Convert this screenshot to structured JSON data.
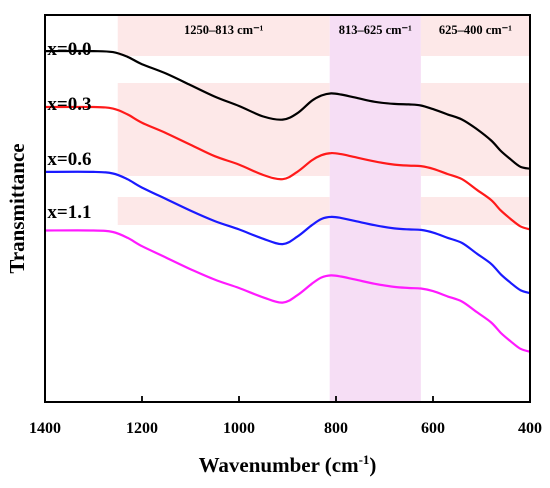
{
  "chart_data": {
    "type": "line",
    "title": "",
    "xlabel": "Wavenumber (cm",
    "xlabel_sup": "-1",
    "xlabel_end": ")",
    "ylabel": "Transmittance",
    "xlim": [
      1400,
      400
    ],
    "x_reversed": true,
    "y_ticks_shown": false,
    "grid": false,
    "xticks": [
      1400,
      1200,
      1000,
      800,
      600,
      400
    ],
    "xtick_labels": [
      "1400",
      "1200",
      "1000",
      "800",
      "600",
      "400"
    ],
    "regions": [
      {
        "label": "1250–813 cm⁻¹",
        "x0": 1250,
        "x1": 813,
        "color": "#fde8e8"
      },
      {
        "label": "813–625 cm⁻¹",
        "x0": 813,
        "x1": 625,
        "color": "#f6def5"
      },
      {
        "label": "625–400 cm⁻¹",
        "x0": 625,
        "x1": 400,
        "color": "#fde8e8"
      }
    ],
    "series": [
      {
        "name": "x=0.0",
        "color": "#000000",
        "x": [
          1400,
          1300,
          1260,
          1230,
          1200,
          1150,
          1100,
          1050,
          1000,
          950,
          910,
          880,
          850,
          830,
          810,
          790,
          760,
          720,
          680,
          650,
          625,
          600,
          570,
          540,
          510,
          480,
          460,
          440,
          420,
          400
        ],
        "y": [
          60.5,
          60.5,
          59.5,
          55,
          48,
          39,
          28,
          17,
          8,
          -2,
          -5,
          1,
          13,
          18,
          20,
          19,
          16,
          12,
          10,
          9.5,
          8.5,
          5,
          0,
          -5,
          -14,
          -25,
          -35,
          -43,
          -50,
          -52
        ]
      },
      {
        "name": "x=0.3",
        "color": "#ff1a1a",
        "x": [
          1400,
          1300,
          1260,
          1230,
          1200,
          1150,
          1100,
          1050,
          1000,
          950,
          910,
          880,
          850,
          830,
          810,
          790,
          760,
          720,
          680,
          650,
          625,
          600,
          570,
          540,
          510,
          480,
          460,
          440,
          420,
          400
        ],
        "y": [
          7,
          7,
          5.5,
          0,
          -8,
          -18,
          -29,
          -40,
          -48,
          -58,
          -62,
          -55,
          -44,
          -39,
          -37,
          -38,
          -41,
          -45,
          -48,
          -49,
          -49.5,
          -52,
          -57,
          -62,
          -72,
          -82,
          -92,
          -100,
          -107,
          -110
        ]
      },
      {
        "name": "x=0.6",
        "color": "#1a1aff",
        "x": [
          1400,
          1300,
          1260,
          1230,
          1200,
          1150,
          1100,
          1050,
          1000,
          950,
          910,
          880,
          850,
          830,
          810,
          790,
          760,
          720,
          680,
          650,
          625,
          600,
          570,
          540,
          510,
          480,
          460,
          440,
          420,
          400
        ],
        "y": [
          -55,
          -55,
          -56.5,
          -62,
          -70,
          -81,
          -92,
          -102,
          -110,
          -119,
          -124,
          -117,
          -106,
          -100,
          -98,
          -99,
          -102,
          -106,
          -109,
          -110,
          -110.5,
          -113,
          -118,
          -123,
          -133,
          -143,
          -153,
          -161,
          -168,
          -171
        ]
      },
      {
        "name": "x=1.1",
        "color": "#ff1aff",
        "x": [
          1400,
          1300,
          1260,
          1230,
          1200,
          1150,
          1100,
          1050,
          1000,
          950,
          910,
          880,
          850,
          830,
          810,
          790,
          760,
          720,
          680,
          650,
          625,
          600,
          570,
          540,
          510,
          480,
          460,
          440,
          420,
          400
        ],
        "y": [
          -111,
          -111,
          -112.5,
          -118,
          -126,
          -137,
          -148,
          -158,
          -166,
          -175,
          -180,
          -173,
          -162,
          -156,
          -154,
          -155,
          -158,
          -162,
          -165,
          -166,
          -166.5,
          -169,
          -174,
          -179,
          -189,
          -199,
          -209,
          -217,
          -224,
          -227
        ]
      }
    ]
  }
}
